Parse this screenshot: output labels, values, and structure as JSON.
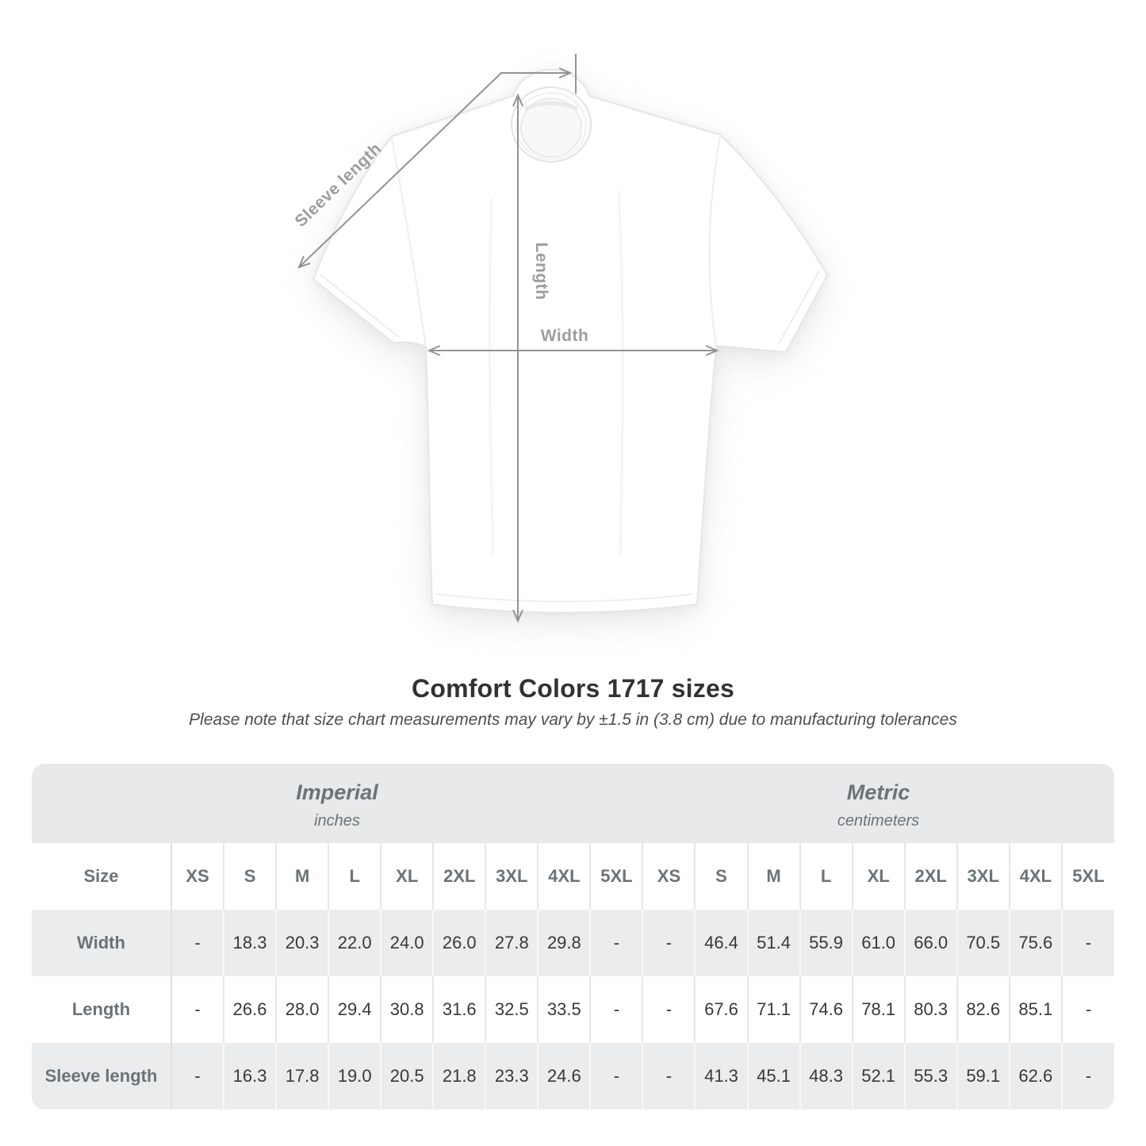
{
  "diagram": {
    "sleeve_label": "Sleeve length",
    "length_label": "Length",
    "width_label": "Width"
  },
  "title": "Comfort Colors 1717 sizes",
  "note": "Please note that size chart measurements may vary by ±1.5 in (3.8 cm) due to manufacturing tolerances",
  "chart_data": {
    "type": "table",
    "title": "Comfort Colors 1717 sizes",
    "column_groups": [
      {
        "label": "Imperial",
        "unit": "inches"
      },
      {
        "label": "Metric",
        "unit": "centimeters"
      }
    ],
    "size_header": "Size",
    "sizes": [
      "XS",
      "S",
      "M",
      "L",
      "XL",
      "2XL",
      "3XL",
      "4XL",
      "5XL"
    ],
    "rows": [
      {
        "label": "Width",
        "imperial": [
          "-",
          "18.3",
          "20.3",
          "22.0",
          "24.0",
          "26.0",
          "27.8",
          "29.8",
          "-"
        ],
        "metric": [
          "-",
          "46.4",
          "51.4",
          "55.9",
          "61.0",
          "66.0",
          "70.5",
          "75.6",
          "-"
        ]
      },
      {
        "label": "Length",
        "imperial": [
          "-",
          "26.6",
          "28.0",
          "29.4",
          "30.8",
          "31.6",
          "32.5",
          "33.5",
          "-"
        ],
        "metric": [
          "-",
          "67.6",
          "71.1",
          "74.6",
          "78.1",
          "80.3",
          "82.6",
          "85.1",
          "-"
        ]
      },
      {
        "label": "Sleeve length",
        "imperial": [
          "-",
          "16.3",
          "17.8",
          "19.0",
          "20.5",
          "21.8",
          "23.3",
          "24.6",
          "-"
        ],
        "metric": [
          "-",
          "41.3",
          "45.1",
          "48.3",
          "52.1",
          "55.3",
          "59.1",
          "62.6",
          "-"
        ]
      }
    ]
  },
  "colors": {
    "band_gray": "#e8e9ea",
    "stripe_gray": "#ebeced",
    "header_text": "#6b7378",
    "value_text": "#36393c",
    "diagram_gray": "#96989b",
    "title_text": "#303336"
  }
}
